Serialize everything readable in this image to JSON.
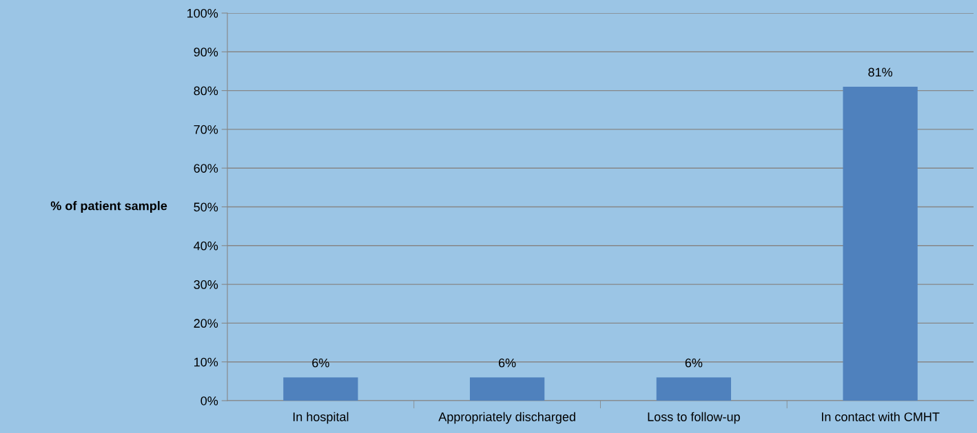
{
  "chart_data": {
    "type": "bar",
    "ylabel": "% of patient sample",
    "categories": [
      "In hospital",
      "Appropriately discharged",
      "Loss to follow-up",
      "In contact with CMHT"
    ],
    "values": [
      6,
      6,
      6,
      81
    ],
    "color": "#4f81bd",
    "value_labels": [
      "6%",
      "6%",
      "6%",
      "81%"
    ],
    "ylim": [
      0,
      100
    ],
    "yticks": [
      {
        "value": 0,
        "label": "0%"
      },
      {
        "value": 10,
        "label": "10%"
      },
      {
        "value": 20,
        "label": "20%"
      },
      {
        "value": 30,
        "label": "30%"
      },
      {
        "value": 40,
        "label": "40%"
      },
      {
        "value": 50,
        "label": "50%"
      },
      {
        "value": 60,
        "label": "60%"
      },
      {
        "value": 70,
        "label": "70%"
      },
      {
        "value": 80,
        "label": "80%"
      },
      {
        "value": 90,
        "label": "90%"
      },
      {
        "value": 100,
        "label": "100%"
      }
    ],
    "grid": "y",
    "legend": false
  }
}
